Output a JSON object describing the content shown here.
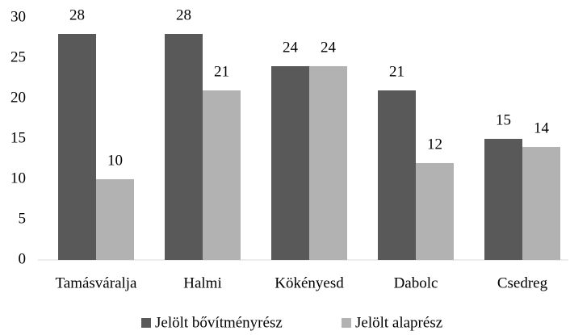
{
  "chart_data": {
    "type": "bar",
    "categories": [
      "Tamásváralja",
      "Halmi",
      "Kökényesd",
      "Dabolc",
      "Csedreg"
    ],
    "series": [
      {
        "name": "Jelölt bővítményrész",
        "color": "#595959",
        "values": [
          28,
          28,
          24,
          21,
          15
        ]
      },
      {
        "name": "Jelölt alaprész",
        "color": "#b2b2b2",
        "values": [
          10,
          21,
          24,
          12,
          14
        ]
      }
    ],
    "ylim": [
      0,
      30
    ],
    "yticks": [
      0,
      5,
      10,
      15,
      20,
      25,
      30
    ],
    "grid": false,
    "legend": "bottom"
  }
}
